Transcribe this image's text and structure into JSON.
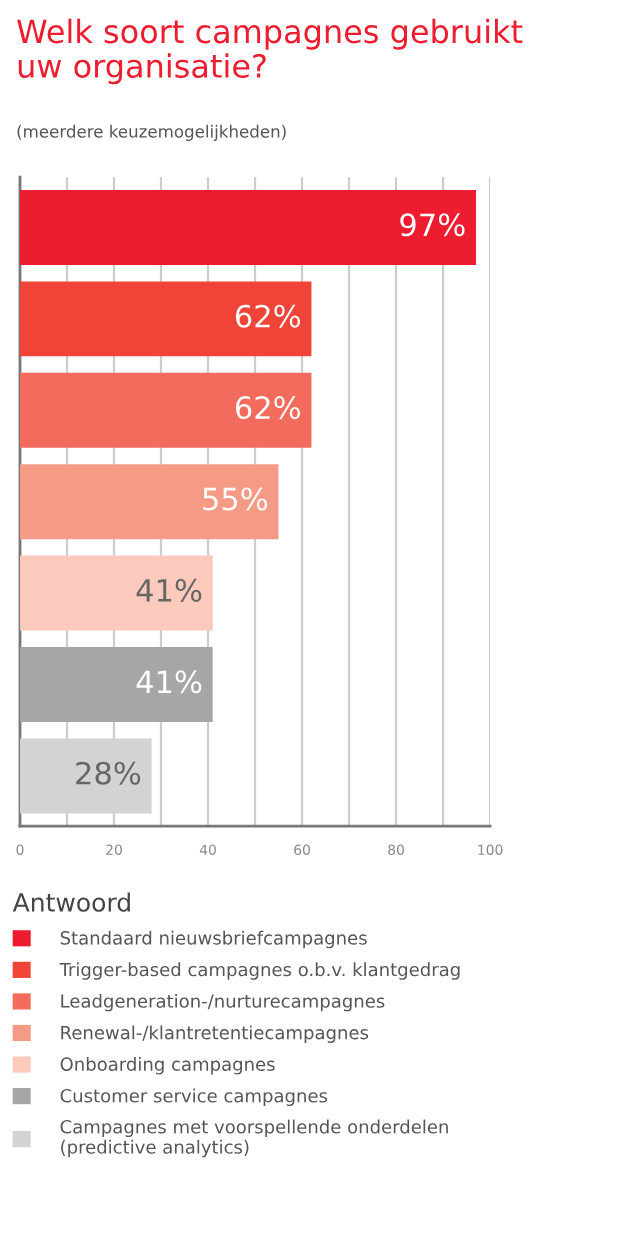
{
  "chart_data": {
    "type": "bar",
    "orientation": "horizontal",
    "title": "Welk soort campagnes gebruikt\nuw organisatie?",
    "subtitle": "(meerdere keuzemogelijkheden)",
    "legend_title": "Antwoord",
    "categories": [
      null,
      null,
      null,
      null,
      null,
      null,
      null
    ],
    "series": [
      {
        "name": "Standaard nieuwsbriefcampagnes",
        "color": "#ed1c2e",
        "values": [
          97,
          null,
          null,
          null,
          null,
          null,
          null
        ],
        "value_labels": [
          "97%",
          null,
          null,
          null,
          null,
          null,
          null
        ]
      },
      {
        "name": "Trigger-based campagnes o.b.v. klantgedrag",
        "color": "#f04438",
        "values": [
          null,
          62,
          null,
          null,
          null,
          null,
          null
        ],
        "value_labels": [
          null,
          "62%",
          null,
          null,
          null,
          null,
          null
        ]
      },
      {
        "name": "Leadgeneration-/nurturecampagnes",
        "color": "#f36b5c",
        "values": [
          null,
          null,
          62,
          null,
          null,
          null,
          null
        ],
        "value_labels": [
          null,
          null,
          "62%",
          null,
          null,
          null,
          null
        ]
      },
      {
        "name": "Renewal-/klantretentiecampagnes",
        "color": "#f59a85",
        "values": [
          null,
          null,
          null,
          55,
          null,
          null,
          null
        ],
        "value_labels": [
          null,
          null,
          null,
          "55%",
          null,
          null,
          null
        ]
      },
      {
        "name": "Onboarding campagnes",
        "color": "#fbcabd",
        "values": [
          null,
          null,
          null,
          null,
          41,
          null,
          null
        ],
        "value_labels": [
          null,
          null,
          null,
          null,
          "41%",
          null,
          null
        ]
      },
      {
        "name": "Customer service campagnes",
        "color": "#a6a6a6",
        "values": [
          null,
          null,
          null,
          null,
          null,
          41,
          null
        ],
        "value_labels": [
          null,
          null,
          null,
          null,
          null,
          "41%",
          null
        ]
      },
      {
        "name": "Campagnes met voorspellende onderdelen\n(predictive analytics)",
        "color": "#d3d3d3",
        "values": [
          null,
          null,
          null,
          null,
          null,
          null,
          28
        ],
        "value_labels": [
          null,
          null,
          null,
          null,
          null,
          null,
          "28%"
        ]
      }
    ],
    "xlim": [
      0,
      100
    ],
    "xticks": [
      0,
      {
        "value": 10,
        "label": null
      },
      20,
      {
        "value": 30,
        "label": null
      },
      40,
      {
        "value": 50,
        "label": null
      },
      60,
      {
        "value": 70,
        "label": null
      },
      80,
      {
        "value": 90,
        "label": null
      },
      100
    ],
    "grid": "x",
    "legend": "bottom",
    "tick_labels": "x"
  }
}
